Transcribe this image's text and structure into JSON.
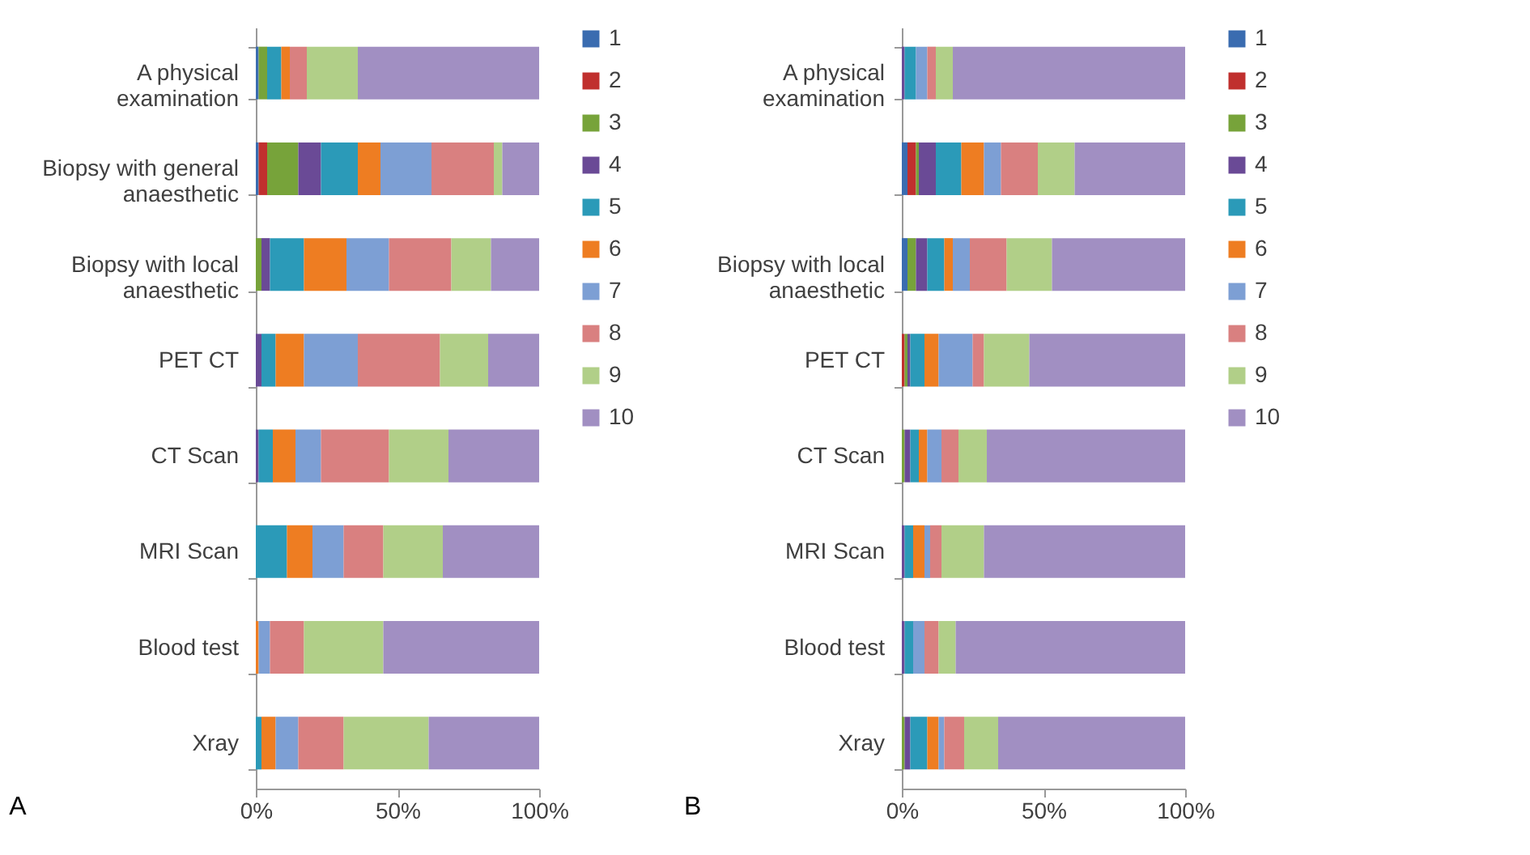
{
  "chart_data": [
    {
      "type": "bar",
      "orientation": "horizontal",
      "stacked": true,
      "legend": "right",
      "annotations": [
        "A"
      ],
      "categories": [
        "A physical examination",
        "Biopsy with general anaesthetic",
        "Biopsy with local anaesthetic",
        "PET CT",
        "CT Scan",
        "MRI Scan",
        "Blood test",
        "Xray"
      ],
      "xlim": [
        0,
        1
      ],
      "xticks": [
        {
          "value": 0,
          "label": "0%"
        },
        {
          "value": 0.5,
          "label": "50%"
        },
        {
          "value": 1,
          "label": "100%"
        }
      ],
      "series": [
        {
          "name": "1",
          "color": "#3a6cb0",
          "values": [
            0.01,
            0.01,
            0,
            0,
            0,
            0,
            0,
            0
          ]
        },
        {
          "name": "2",
          "color": "#c0302e",
          "values": [
            0,
            0.03,
            0,
            0,
            0,
            0,
            0,
            0
          ]
        },
        {
          "name": "3",
          "color": "#77a33a",
          "values": [
            0.03,
            0.11,
            0.02,
            0,
            0,
            0,
            0,
            0
          ]
        },
        {
          "name": "4",
          "color": "#6a4a96",
          "values": [
            0,
            0.08,
            0.03,
            0.02,
            0.01,
            0,
            0,
            0
          ]
        },
        {
          "name": "5",
          "color": "#2b9ab8",
          "values": [
            0.05,
            0.13,
            0.12,
            0.05,
            0.05,
            0.11,
            0,
            0.02
          ]
        },
        {
          "name": "6",
          "color": "#ee7d22",
          "values": [
            0.03,
            0.08,
            0.15,
            0.1,
            0.08,
            0.09,
            0.01,
            0.05
          ]
        },
        {
          "name": "7",
          "color": "#7d9fd4",
          "values": [
            0,
            0.18,
            0.15,
            0.19,
            0.09,
            0.11,
            0.04,
            0.08
          ]
        },
        {
          "name": "8",
          "color": "#d98080",
          "values": [
            0.06,
            0.22,
            0.22,
            0.29,
            0.24,
            0.14,
            0.12,
            0.16
          ]
        },
        {
          "name": "9",
          "color": "#b1cf88",
          "values": [
            0.18,
            0.03,
            0.14,
            0.17,
            0.21,
            0.21,
            0.28,
            0.3
          ]
        },
        {
          "name": "10",
          "color": "#a18fc2",
          "values": [
            0.64,
            0.13,
            0.17,
            0.18,
            0.32,
            0.34,
            0.55,
            0.39
          ]
        }
      ]
    },
    {
      "type": "bar",
      "orientation": "horizontal",
      "stacked": true,
      "legend": "right",
      "annotations": [
        "B"
      ],
      "categories": [
        "A physical examination",
        null,
        "Biopsy with local anaesthetic",
        "PET CT",
        "CT Scan",
        "MRI Scan",
        "Blood test",
        "Xray"
      ],
      "xlim": [
        0,
        1
      ],
      "xticks": [
        {
          "value": 0,
          "label": "0%"
        },
        {
          "value": 0.5,
          "label": "50%"
        },
        {
          "value": 1,
          "label": "100%"
        }
      ],
      "series": [
        {
          "name": "1",
          "color": "#3a6cb0",
          "values": [
            0,
            0.02,
            0.02,
            0,
            0,
            0,
            0,
            0
          ]
        },
        {
          "name": "2",
          "color": "#c0302e",
          "values": [
            0,
            0.03,
            0,
            0.01,
            0,
            0,
            0,
            0
          ]
        },
        {
          "name": "3",
          "color": "#77a33a",
          "values": [
            0,
            0.01,
            0.03,
            0.01,
            0.01,
            0,
            0,
            0.01
          ]
        },
        {
          "name": "4",
          "color": "#6a4a96",
          "values": [
            0.01,
            0.06,
            0.04,
            0.01,
            0.02,
            0.01,
            0.01,
            0.02
          ]
        },
        {
          "name": "5",
          "color": "#2b9ab8",
          "values": [
            0.04,
            0.09,
            0.06,
            0.05,
            0.03,
            0.03,
            0.03,
            0.06
          ]
        },
        {
          "name": "6",
          "color": "#ee7d22",
          "values": [
            0,
            0.08,
            0.03,
            0.05,
            0.03,
            0.04,
            0,
            0.04
          ]
        },
        {
          "name": "7",
          "color": "#7d9fd4",
          "values": [
            0.04,
            0.06,
            0.06,
            0.12,
            0.05,
            0.02,
            0.04,
            0.02
          ]
        },
        {
          "name": "8",
          "color": "#d98080",
          "values": [
            0.03,
            0.13,
            0.13,
            0.04,
            0.06,
            0.04,
            0.05,
            0.07
          ]
        },
        {
          "name": "9",
          "color": "#b1cf88",
          "values": [
            0.06,
            0.13,
            0.16,
            0.16,
            0.1,
            0.15,
            0.06,
            0.12
          ]
        },
        {
          "name": "10",
          "color": "#a18fc2",
          "values": [
            0.82,
            0.39,
            0.47,
            0.55,
            0.7,
            0.71,
            0.81,
            0.66
          ]
        }
      ]
    }
  ]
}
